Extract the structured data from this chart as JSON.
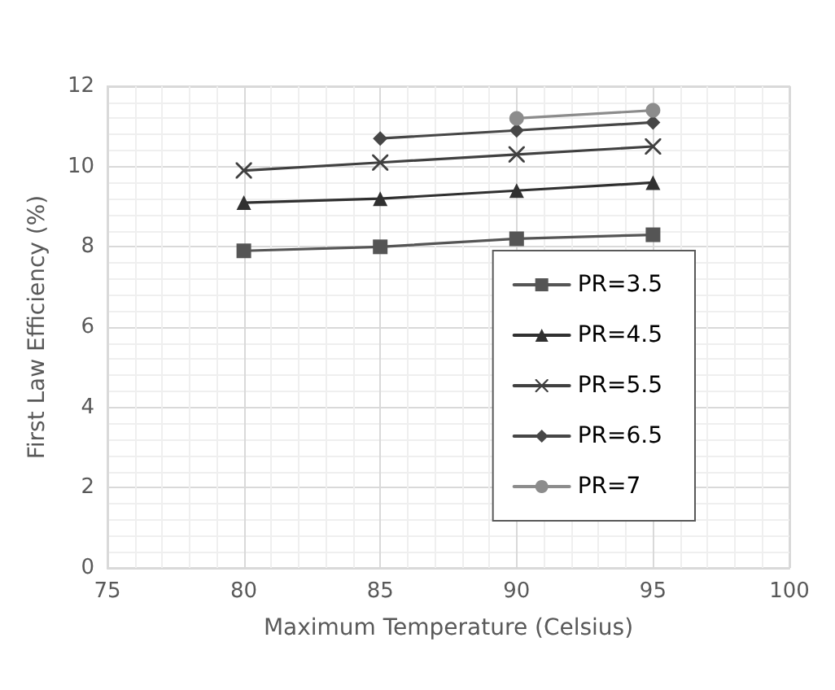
{
  "chart_data": {
    "type": "line",
    "xlabel": "Maximum Temperature (Celsius)",
    "ylabel": "First Law Efficiency (%)",
    "x": [
      80,
      85,
      90,
      95
    ],
    "xlim": [
      75,
      100
    ],
    "xticks": [
      75,
      80,
      85,
      90,
      95,
      100
    ],
    "ylim": [
      0,
      12
    ],
    "yticks": [
      0,
      2,
      4,
      6,
      8,
      10,
      12
    ],
    "grid": true,
    "legend": "bottom right",
    "line_style": "solid",
    "series": [
      {
        "name": "PR=3.5",
        "color": "#555555",
        "marker": "square",
        "values": [
          7.9,
          8.0,
          8.2,
          8.3
        ]
      },
      {
        "name": "PR=4.5",
        "color": "#303030",
        "marker": "triangle",
        "values": [
          9.1,
          9.2,
          9.4,
          9.6
        ]
      },
      {
        "name": "PR=5.5",
        "color": "#404040",
        "marker": "cross",
        "values": [
          9.9,
          10.1,
          10.3,
          10.5
        ]
      },
      {
        "name": "PR=6.5",
        "color": "#464646",
        "marker": "diamond",
        "values": [
          null,
          10.7,
          10.9,
          11.1
        ]
      },
      {
        "name": "PR=7",
        "color": "#8c8c8c",
        "marker": "circle",
        "values": [
          null,
          null,
          11.2,
          11.4
        ]
      }
    ]
  }
}
